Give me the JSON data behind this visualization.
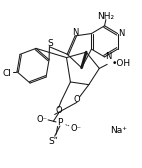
{
  "background_color": "#ffffff",
  "figsize": [
    1.42,
    1.68
  ],
  "dpi": 100,
  "line_color": "#1a1a1a",
  "text_color": "#000000",
  "font_size": 6.5,
  "xlim": [
    -0.05,
    1.0
  ],
  "ylim": [
    -0.05,
    1.18
  ]
}
